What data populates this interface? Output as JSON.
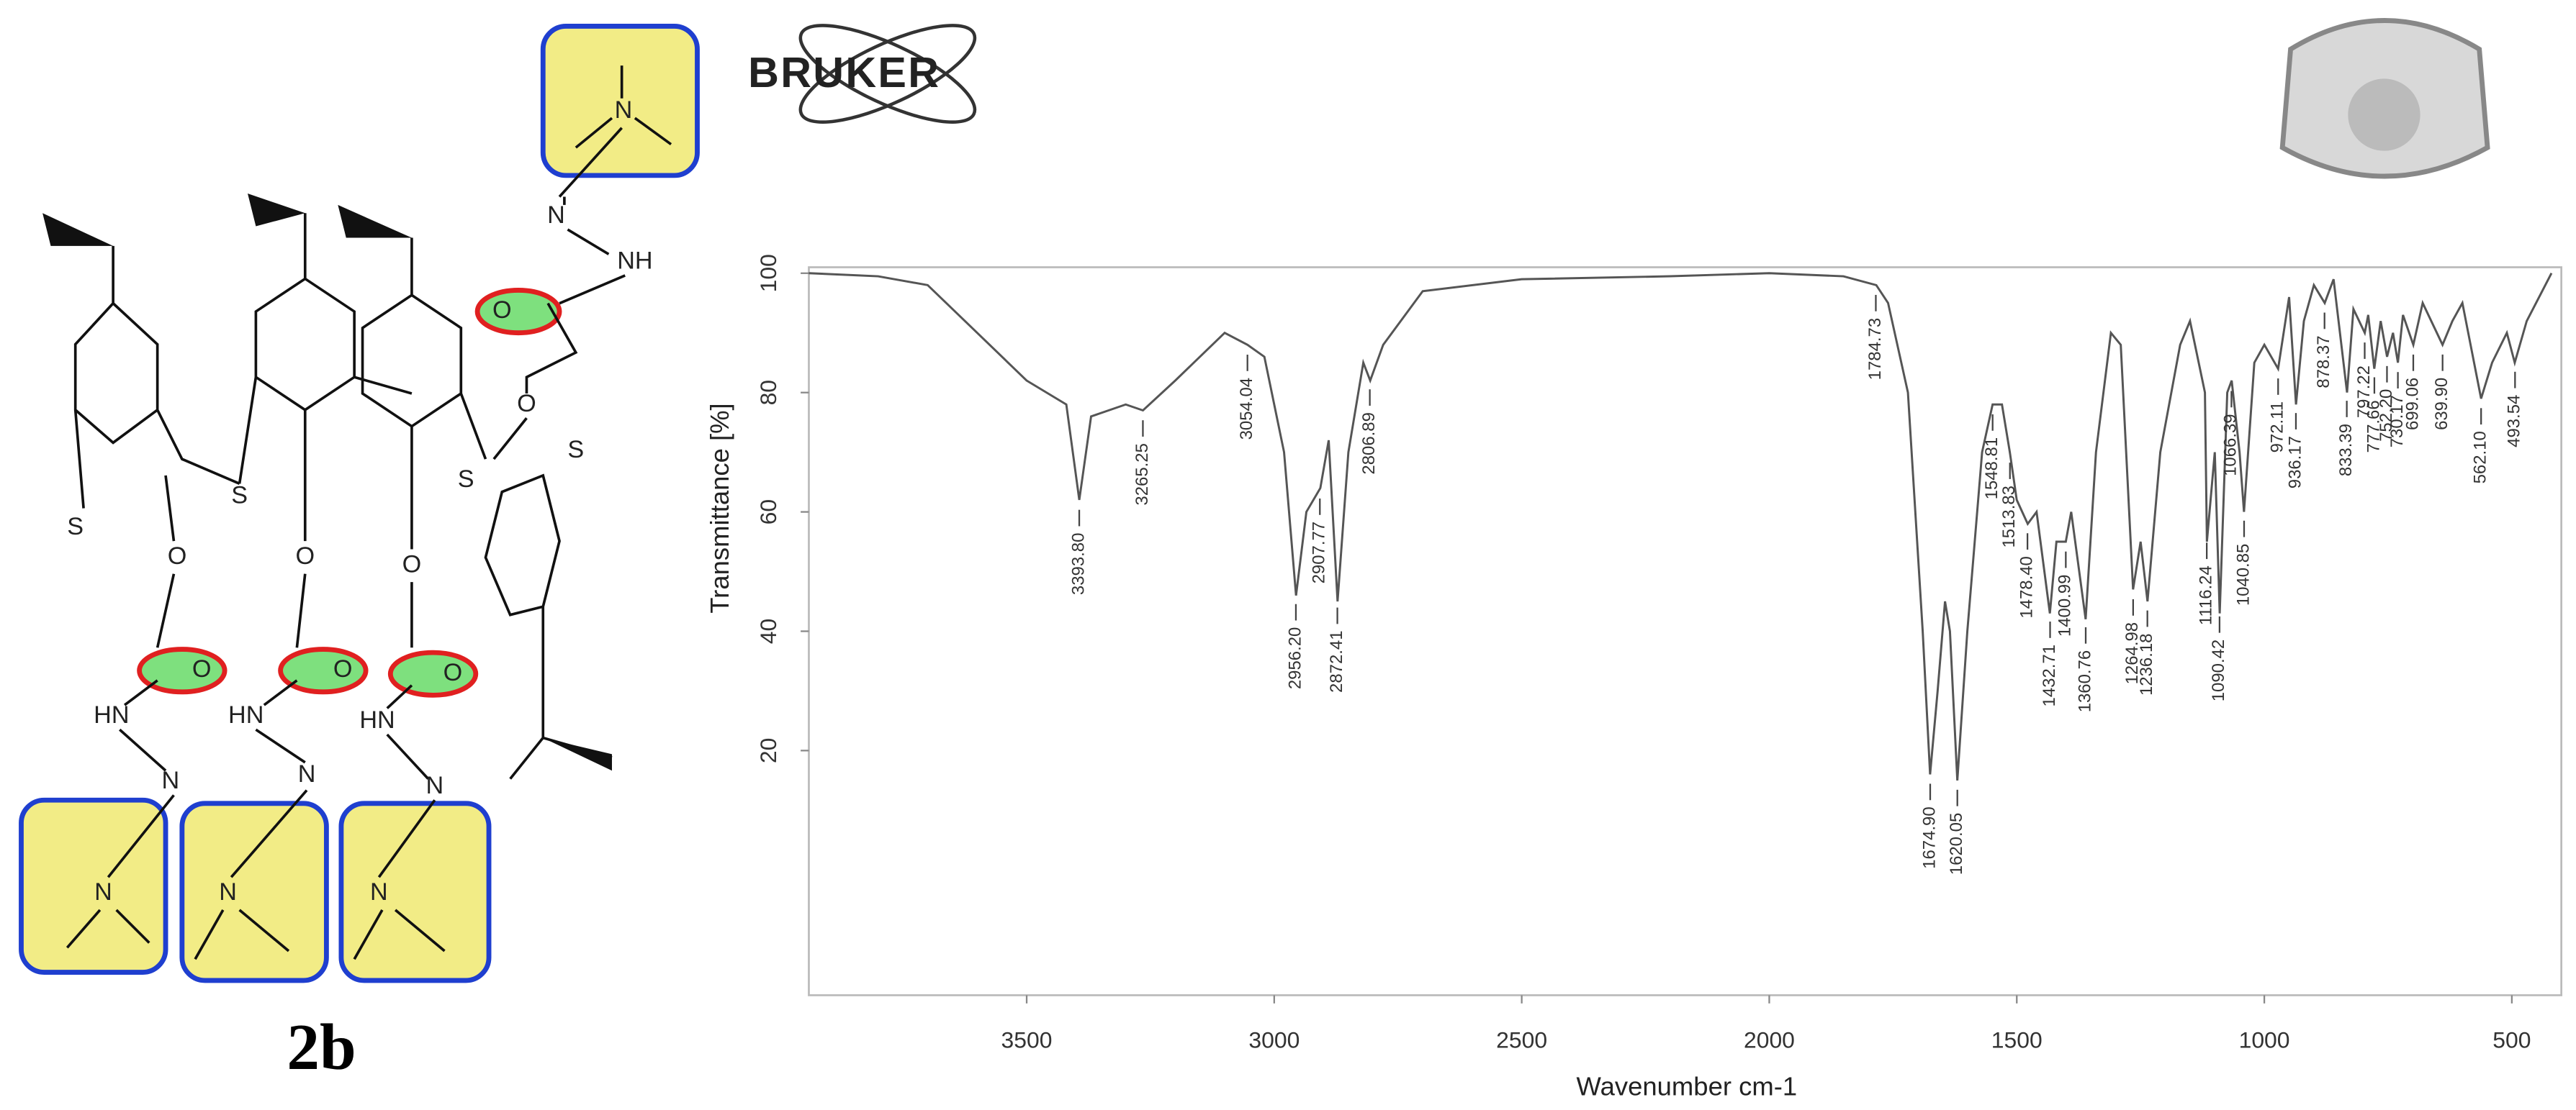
{
  "chart_data": {
    "type": "line",
    "x_label": "Wavenumber cm-1",
    "y_label": "Transmittance [%]",
    "xlim": [
      3940,
      400
    ],
    "ylim": [
      -21,
      101
    ],
    "xticks": [
      3500,
      3000,
      2500,
      2000,
      1500,
      1000,
      500
    ],
    "yticks": [
      20,
      40,
      60,
      80,
      100
    ],
    "color": "#555555",
    "x": [
      3940,
      3800,
      3700,
      3600,
      3500,
      3420,
      3393.8,
      3370,
      3300,
      3265,
      3200,
      3100,
      3054,
      3020,
      2980,
      2956,
      2935,
      2907,
      2890,
      2872,
      2850,
      2820,
      2806,
      2780,
      2700,
      2500,
      2200,
      2000,
      1850,
      1784,
      1760,
      1720,
      1690,
      1675,
      1660,
      1645,
      1635,
      1620,
      1600,
      1570,
      1549,
      1530,
      1514,
      1500,
      1478,
      1460,
      1433,
      1420,
      1401,
      1390,
      1361,
      1340,
      1310,
      1290,
      1265,
      1250,
      1236,
      1210,
      1170,
      1150,
      1120,
      1116,
      1100,
      1090,
      1075,
      1066,
      1050,
      1041,
      1020,
      1000,
      972,
      950,
      936,
      920,
      900,
      878,
      860,
      833,
      820,
      797,
      790,
      778,
      765,
      752,
      740,
      730,
      720,
      699,
      680,
      640,
      620,
      600,
      562,
      540,
      510,
      494,
      470,
      420
    ],
    "values": [
      100,
      99.5,
      98,
      90,
      82,
      78,
      62,
      76,
      78,
      77,
      82,
      90,
      88,
      86,
      70,
      46,
      60,
      64,
      72,
      45,
      70,
      85,
      82,
      88,
      97,
      99,
      99.5,
      100,
      99.5,
      98,
      95,
      80,
      40,
      16,
      30,
      45,
      40,
      15,
      40,
      70,
      78,
      78,
      70,
      62,
      58,
      60,
      43,
      55,
      55,
      60,
      42,
      70,
      90,
      88,
      47,
      55,
      45,
      70,
      88,
      92,
      80,
      55,
      70,
      43,
      80,
      82,
      70,
      60,
      85,
      88,
      84,
      96,
      78,
      92,
      98,
      95,
      99,
      80,
      94,
      90,
      93,
      84,
      92,
      86,
      90,
      85,
      93,
      88,
      95,
      88,
      92,
      95,
      79,
      85,
      90,
      85,
      92,
      100
    ],
    "peaks": [
      {
        "value": 3393.8,
        "label": "3393.80"
      },
      {
        "value": 3265.25,
        "label": "3265.25"
      },
      {
        "value": 3054.04,
        "label": "3054.04"
      },
      {
        "value": 2956.2,
        "label": "2956.20"
      },
      {
        "value": 2907.77,
        "label": "2907.77"
      },
      {
        "value": 2872.41,
        "label": "2872.41"
      },
      {
        "value": 2806.89,
        "label": "2806.89"
      },
      {
        "value": 1784.73,
        "label": "1784.73"
      },
      {
        "value": 1674.9,
        "label": "1674.90"
      },
      {
        "value": 1620.05,
        "label": "1620.05"
      },
      {
        "value": 1548.81,
        "label": "1548.81"
      },
      {
        "value": 1513.83,
        "label": "1513.83"
      },
      {
        "value": 1478.4,
        "label": "1478.40"
      },
      {
        "value": 1432.71,
        "label": "1432.71"
      },
      {
        "value": 1400.99,
        "label": "1400.99"
      },
      {
        "value": 1360.76,
        "label": "1360.76"
      },
      {
        "value": 1264.98,
        "label": "1264.98"
      },
      {
        "value": 1236.18,
        "label": "1236.18"
      },
      {
        "value": 1116.24,
        "label": "1116.24"
      },
      {
        "value": 1090.42,
        "label": "1090.42"
      },
      {
        "value": 1066.39,
        "label": "1066.39"
      },
      {
        "value": 1040.85,
        "label": "1040.85"
      },
      {
        "value": 972.11,
        "label": "972.11"
      },
      {
        "value": 936.17,
        "label": "936.17"
      },
      {
        "value": 878.37,
        "label": "878.37"
      },
      {
        "value": 833.39,
        "label": "833.39"
      },
      {
        "value": 797.22,
        "label": "797.22"
      },
      {
        "value": 777.66,
        "label": "777.66"
      },
      {
        "value": 752.2,
        "label": "752.20"
      },
      {
        "value": 730.17,
        "label": "730.17"
      },
      {
        "value": 699.06,
        "label": "699.06"
      },
      {
        "value": 639.9,
        "label": "639.90"
      },
      {
        "value": 562.1,
        "label": "562.10"
      },
      {
        "value": 493.54,
        "label": "493.54"
      }
    ]
  },
  "logo": "BRUKER",
  "structure": {
    "label": "2b",
    "atoms": [
      "N",
      "N",
      "NH",
      "O",
      "O",
      "S",
      "S",
      "S",
      "S",
      "O",
      "O",
      "O",
      "O",
      "O",
      "O",
      "HN",
      "HN",
      "HN",
      "N",
      "N",
      "N",
      "N",
      "N",
      "N"
    ]
  }
}
